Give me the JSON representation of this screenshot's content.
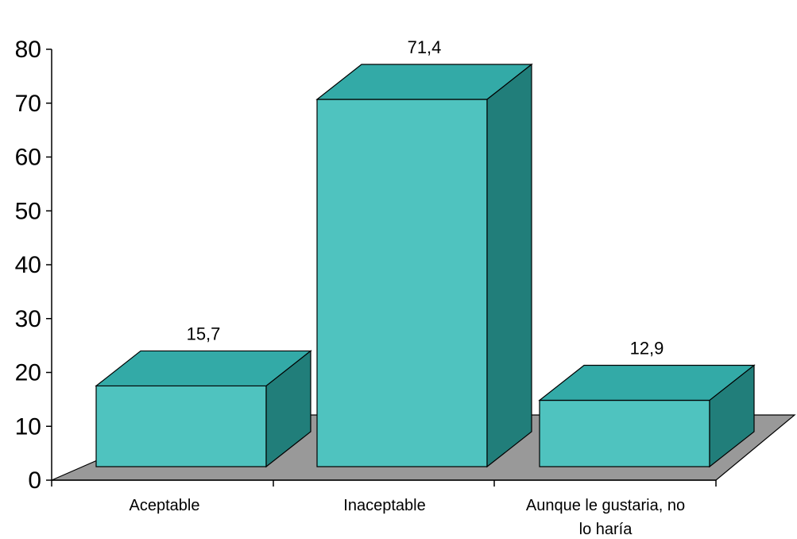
{
  "chart_data": {
    "type": "bar",
    "style": "3d-column",
    "categories": [
      [
        "Aceptable"
      ],
      [
        "Inaceptable"
      ],
      [
        "Aunque le gustaria, no",
        "lo haría"
      ]
    ],
    "values": [
      15.7,
      71.4,
      12.9
    ],
    "data_labels": [
      "15,7",
      "71,4",
      "12,9"
    ],
    "title": "",
    "xlabel": "",
    "ylabel": "",
    "ylim": [
      0,
      80
    ],
    "yticks": [
      0,
      10,
      20,
      30,
      40,
      50,
      60,
      70,
      80
    ],
    "grid": false,
    "legend": "none",
    "colors": {
      "front": "#4FC3BF",
      "top": "#33AAA7",
      "side": "#217E7A",
      "floor": "#999999",
      "stroke": "#000000"
    }
  }
}
